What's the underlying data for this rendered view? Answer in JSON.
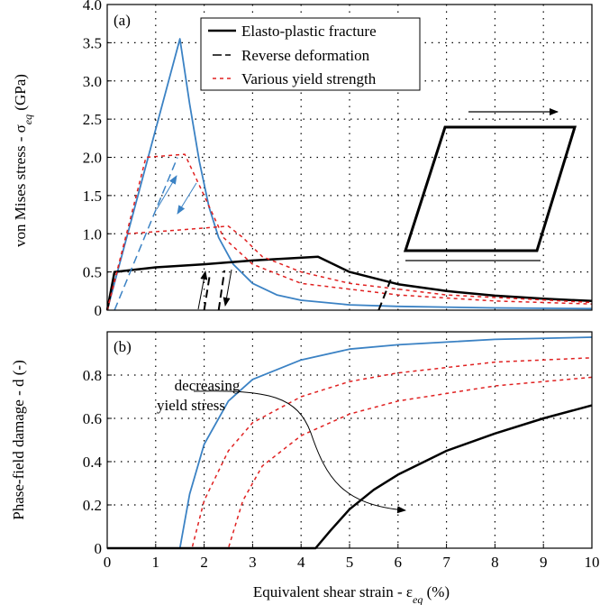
{
  "chart_data": [
    {
      "panel_label": "(a)",
      "type": "line",
      "xlim": [
        0,
        10
      ],
      "ylim": [
        0,
        4.0
      ],
      "y_ticks": [
        "0",
        "0.5",
        "1.0",
        "1.5",
        "2.0",
        "2.5",
        "3.0",
        "3.5",
        "4.0"
      ],
      "ylabel_text": "von Mises stress - σ",
      "ylabel_sub": "eq",
      "ylabel_unit": " (GPa)",
      "grid": "dotted",
      "legend": {
        "placement": "top-center",
        "entries": [
          {
            "label": "Elasto-plastic fracture",
            "style": "solid-black"
          },
          {
            "label": "Reverse deformation",
            "style": "dashed-black"
          },
          {
            "label": "Various yield strength",
            "style": "dashed-red"
          }
        ]
      },
      "series": [
        {
          "style": "solid-blue",
          "x": [
            0,
            1.5,
            1.7,
            1.9,
            2.1,
            2.3,
            2.6,
            3.0,
            3.5,
            4.0,
            5.0,
            6.0,
            8.0,
            10.0
          ],
          "y": [
            0,
            3.55,
            2.7,
            1.95,
            1.35,
            0.95,
            0.6,
            0.35,
            0.2,
            0.13,
            0.07,
            0.05,
            0.03,
            0.02
          ]
        },
        {
          "style": "solid-black",
          "x": [
            0,
            0.15,
            1.0,
            2.0,
            3.0,
            4.35,
            5.0,
            6.0,
            7.0,
            8.0,
            9.0,
            10.0
          ],
          "y": [
            0,
            0.5,
            0.56,
            0.6,
            0.65,
            0.7,
            0.5,
            0.34,
            0.25,
            0.19,
            0.15,
            0.12
          ]
        },
        {
          "style": "dashed-red",
          "x": [
            0,
            0.8,
            1.6,
            2.0,
            2.4,
            3.0,
            4.0,
            6.0,
            8.0,
            10.0
          ],
          "y": [
            0,
            2.0,
            2.04,
            1.5,
            0.95,
            0.6,
            0.35,
            0.2,
            0.12,
            0.08
          ]
        },
        {
          "style": "dashed-red",
          "x": [
            0,
            0.4,
            1.5,
            2.5,
            2.8,
            3.2,
            4.0,
            5.0,
            7.0,
            10.0
          ],
          "y": [
            0,
            1.0,
            1.05,
            1.1,
            0.95,
            0.7,
            0.5,
            0.35,
            0.2,
            0.1
          ]
        },
        {
          "style": "dashed-black",
          "x": [
            2.0,
            2.12
          ],
          "y": [
            0,
            0.48
          ]
        },
        {
          "style": "dashed-black",
          "x": [
            2.3,
            2.42
          ],
          "y": [
            0,
            0.52
          ]
        },
        {
          "style": "dashed-black",
          "x": [
            5.6,
            5.85
          ],
          "y": [
            0,
            0.4
          ]
        },
        {
          "style": "dashed-blue",
          "x": [
            0.15,
            1.45
          ],
          "y": [
            0,
            2.0
          ]
        }
      ],
      "inset": "sheared parallelogram with rightward arrow"
    },
    {
      "panel_label": "(b)",
      "type": "line",
      "xlim": [
        0,
        10
      ],
      "ylim": [
        0,
        1.0
      ],
      "x_ticks": [
        "0",
        "1",
        "2",
        "3",
        "4",
        "5",
        "6",
        "7",
        "8",
        "9",
        "10"
      ],
      "y_ticks": [
        "0",
        "0.2",
        "0.4",
        "0.6",
        "0.8"
      ],
      "xlabel_text": "Equivalent shear strain - ε",
      "xlabel_sub": "eq",
      "xlabel_unit": " (%)",
      "ylabel_text": "Phase-field damage - d (-)",
      "grid": "dotted",
      "annotation_lines": [
        "decreasing",
        "yield stress"
      ],
      "series": [
        {
          "style": "solid-blue",
          "x": [
            0,
            1.5,
            1.7,
            2.0,
            2.5,
            3.0,
            4.0,
            5.0,
            6.0,
            8.0,
            10.0
          ],
          "y": [
            0,
            0,
            0.25,
            0.48,
            0.68,
            0.78,
            0.87,
            0.92,
            0.94,
            0.965,
            0.975
          ]
        },
        {
          "style": "dashed-red",
          "x": [
            0,
            1.75,
            2.0,
            2.5,
            3.0,
            4.0,
            5.0,
            6.0,
            8.0,
            10.0
          ],
          "y": [
            0,
            0,
            0.22,
            0.45,
            0.58,
            0.7,
            0.77,
            0.81,
            0.86,
            0.88
          ]
        },
        {
          "style": "dashed-red",
          "x": [
            0,
            2.5,
            2.8,
            3.2,
            4.0,
            5.0,
            6.0,
            8.0,
            10.0
          ],
          "y": [
            0,
            0,
            0.22,
            0.38,
            0.52,
            0.62,
            0.68,
            0.75,
            0.79
          ]
        },
        {
          "style": "solid-black",
          "x": [
            0,
            4.3,
            4.6,
            5.0,
            5.5,
            6.0,
            7.0,
            8.0,
            9.0,
            10.0
          ],
          "y": [
            0,
            0,
            0.08,
            0.18,
            0.27,
            0.34,
            0.45,
            0.53,
            0.6,
            0.66
          ]
        }
      ]
    }
  ],
  "colors": {
    "blue": "#3b82c4",
    "red": "#e02020",
    "black": "#000000",
    "grid": "#000000"
  }
}
